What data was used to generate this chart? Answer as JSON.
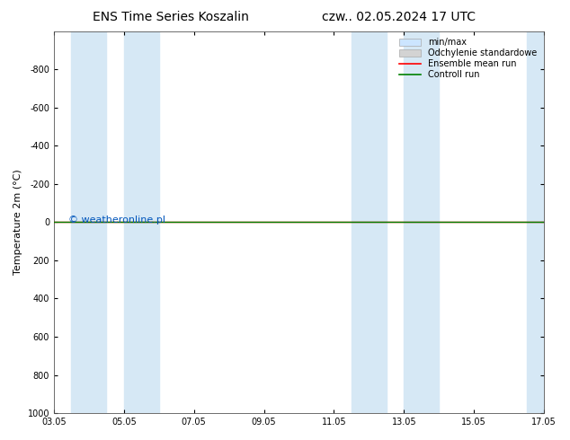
{
  "title_left": "ENS Time Series Koszalin",
  "title_right": "czw.. 02.05.2024 17 UTC",
  "ylabel": "Temperature 2m (°C)",
  "ylim": [
    -1000,
    1000
  ],
  "yticks": [
    -800,
    -600,
    -400,
    -200,
    0,
    200,
    400,
    600,
    800,
    1000
  ],
  "xtick_labels": [
    "03.05",
    "05.05",
    "07.05",
    "09.05",
    "11.05",
    "13.05",
    "15.05",
    "17.05"
  ],
  "xtick_positions": [
    0,
    2,
    4,
    6,
    8,
    10,
    12,
    14
  ],
  "blue_shaded_ranges": [
    [
      0.5,
      1.5
    ],
    [
      2.0,
      3.0
    ],
    [
      8.5,
      9.5
    ],
    [
      10.0,
      11.0
    ],
    [
      13.5,
      14.0
    ]
  ],
  "watermark": "© weatheronline.pl",
  "watermark_color": "#0055bb",
  "legend_labels": [
    "min/max",
    "Odchylenie standardowe",
    "Ensemble mean run",
    "Controll run"
  ],
  "legend_fill_colors": [
    "#cce5ff",
    "#d3d3d3"
  ],
  "legend_line_colors": [
    "red",
    "green"
  ],
  "bg_color": "#ffffff",
  "plot_bg_color": "#ffffff",
  "blue_shade_color": "#d6e8f5",
  "font_size_title": 10,
  "font_size_axis": 8,
  "font_size_tick": 7,
  "font_size_legend": 7,
  "font_size_watermark": 8,
  "green_line_y": 0,
  "red_line_y": 0
}
